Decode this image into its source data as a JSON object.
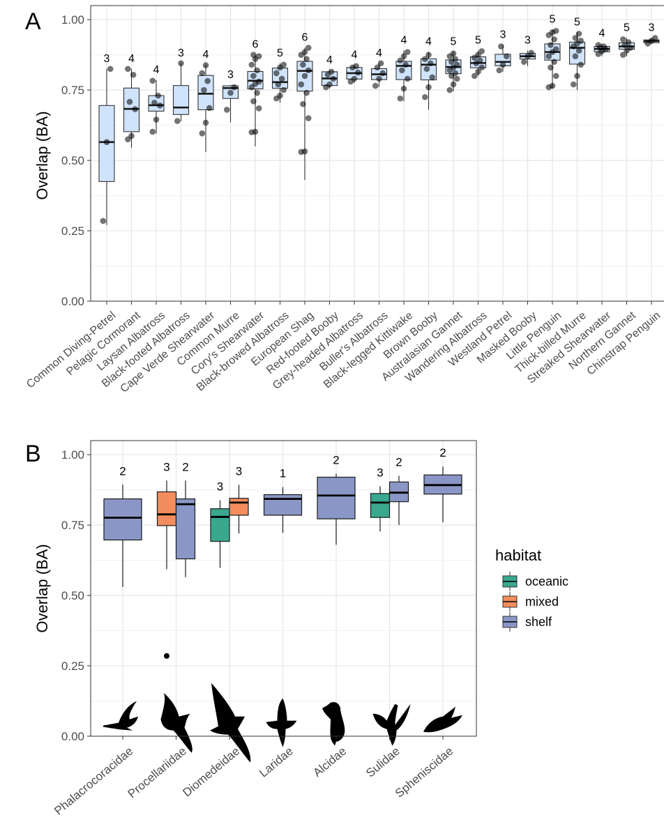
{
  "panel_a": {
    "letter": "A",
    "ylabel": "Overlap (BA)",
    "colors": {
      "box_fill": "#cfe3fb",
      "grid": "#ebebeb",
      "border": "#4d4d4d"
    }
  },
  "panel_b": {
    "letter": "B",
    "ylabel": "Overlap (BA)",
    "legend": {
      "title": "habitat",
      "items": [
        {
          "label": "oceanic",
          "color": "#3aa78f"
        },
        {
          "label": "mixed",
          "color": "#f38d5d"
        },
        {
          "label": "shelf",
          "color": "#8a97c6"
        }
      ]
    }
  },
  "chart_data": [
    {
      "type": "box",
      "ylabel": "Overlap (BA)",
      "ylim": [
        0,
        1.05
      ],
      "yticks": [
        "0.00",
        "0.25",
        "0.50",
        "0.75",
        "1.00"
      ],
      "grid": true,
      "categories": [
        {
          "name": "Common Diving-Petrel",
          "n": "3",
          "whisker_low": 0.27,
          "q1": 0.425,
          "median": 0.565,
          "q3": 0.695,
          "whisker_high": 0.825,
          "points": [
            0.285,
            0.565,
            0.825
          ]
        },
        {
          "name": "Pelagic Cormorant",
          "n": "4",
          "whisker_low": 0.545,
          "q1": 0.602,
          "median": 0.683,
          "q3": 0.757,
          "whisker_high": 0.825,
          "points": [
            0.575,
            0.587,
            0.682,
            0.708,
            0.804,
            0.825
          ]
        },
        {
          "name": "Laysan Albatross",
          "n": "4",
          "whisker_low": 0.595,
          "q1": 0.675,
          "median": 0.696,
          "q3": 0.73,
          "whisker_high": 0.785,
          "points": [
            0.602,
            0.645,
            0.695,
            0.705,
            0.73,
            0.783
          ]
        },
        {
          "name": "Black-footed Albatross",
          "n": "3",
          "whisker_low": 0.64,
          "q1": 0.663,
          "median": 0.688,
          "q3": 0.766,
          "whisker_high": 0.845,
          "points": [
            0.64,
            0.845
          ]
        },
        {
          "name": "Cape Verde Shearwater",
          "n": "4",
          "whisker_low": 0.53,
          "q1": 0.68,
          "median": 0.737,
          "q3": 0.802,
          "whisker_high": 0.84,
          "points": [
            0.596,
            0.634,
            0.686,
            0.75,
            0.782,
            0.81,
            0.838
          ]
        },
        {
          "name": "Common Murre",
          "n": "3",
          "whisker_low": 0.635,
          "q1": 0.72,
          "median": 0.757,
          "q3": 0.765,
          "whisker_high": 0.768,
          "points": [
            0.68,
            0.74,
            0.76
          ]
        },
        {
          "name": "Cory's Shearwater",
          "n": "6",
          "whisker_low": 0.55,
          "q1": 0.754,
          "median": 0.783,
          "q3": 0.816,
          "whisker_high": 0.875,
          "points": [
            0.6,
            0.602,
            0.685,
            0.71,
            0.74,
            0.76,
            0.772,
            0.78,
            0.8,
            0.82,
            0.84,
            0.86,
            0.87,
            0.875
          ]
        },
        {
          "name": "Black-browed Albatross",
          "n": "5",
          "whisker_low": 0.705,
          "q1": 0.756,
          "median": 0.778,
          "q3": 0.828,
          "whisker_high": 0.845,
          "points": [
            0.72,
            0.73,
            0.75,
            0.77,
            0.79,
            0.81,
            0.83,
            0.84
          ]
        },
        {
          "name": "European Shag",
          "n": "6",
          "whisker_low": 0.43,
          "q1": 0.746,
          "median": 0.818,
          "q3": 0.852,
          "whisker_high": 0.9,
          "points": [
            0.53,
            0.532,
            0.65,
            0.7,
            0.74,
            0.77,
            0.8,
            0.82,
            0.84,
            0.86,
            0.875,
            0.885,
            0.9
          ]
        },
        {
          "name": "Red-footed Booby",
          "n": "4",
          "whisker_low": 0.755,
          "q1": 0.766,
          "median": 0.791,
          "q3": 0.815,
          "whisker_high": 0.82,
          "points": [
            0.76,
            0.77,
            0.79,
            0.805,
            0.815
          ]
        },
        {
          "name": "Grey-headed Albatross",
          "n": "4",
          "whisker_low": 0.775,
          "q1": 0.789,
          "median": 0.81,
          "q3": 0.83,
          "whisker_high": 0.838,
          "points": [
            0.78,
            0.79,
            0.812,
            0.83,
            0.835
          ]
        },
        {
          "name": "Buller's Albatross",
          "n": "4",
          "whisker_low": 0.762,
          "q1": 0.787,
          "median": 0.806,
          "q3": 0.826,
          "whisker_high": 0.845,
          "points": [
            0.765,
            0.79,
            0.81,
            0.83,
            0.845
          ]
        },
        {
          "name": "Black-legged Kittiwake",
          "n": "4",
          "whisker_low": 0.71,
          "q1": 0.787,
          "median": 0.836,
          "q3": 0.852,
          "whisker_high": 0.89,
          "points": [
            0.72,
            0.755,
            0.79,
            0.82,
            0.84,
            0.855,
            0.87,
            0.885
          ]
        },
        {
          "name": "Brown Booby",
          "n": "4",
          "whisker_low": 0.68,
          "q1": 0.786,
          "median": 0.84,
          "q3": 0.861,
          "whisker_high": 0.885,
          "points": [
            0.725,
            0.76,
            0.795,
            0.825,
            0.845,
            0.86,
            0.875
          ]
        },
        {
          "name": "Australasian Gannet",
          "n": "5",
          "whisker_low": 0.745,
          "q1": 0.808,
          "median": 0.832,
          "q3": 0.857,
          "whisker_high": 0.885,
          "points": [
            0.75,
            0.77,
            0.79,
            0.8,
            0.81,
            0.82,
            0.83,
            0.84,
            0.85,
            0.86,
            0.87,
            0.88
          ]
        },
        {
          "name": "Wandering Albatross",
          "n": "5",
          "whisker_low": 0.8,
          "q1": 0.829,
          "median": 0.846,
          "q3": 0.868,
          "whisker_high": 0.89,
          "points": [
            0.8,
            0.815,
            0.83,
            0.845,
            0.855,
            0.865,
            0.875,
            0.888
          ]
        },
        {
          "name": "Westland Petrel",
          "n": "3",
          "whisker_low": 0.815,
          "q1": 0.836,
          "median": 0.85,
          "q3": 0.877,
          "whisker_high": 0.91,
          "points": [
            0.82,
            0.84,
            0.87,
            0.905
          ]
        },
        {
          "name": "Masked Booby",
          "n": "3",
          "whisker_low": 0.835,
          "q1": 0.86,
          "median": 0.87,
          "q3": 0.88,
          "whisker_high": 0.89,
          "points": [
            0.85,
            0.87,
            0.882
          ]
        },
        {
          "name": "Little Penguin",
          "n": "5",
          "whisker_low": 0.755,
          "q1": 0.856,
          "median": 0.885,
          "q3": 0.914,
          "whisker_high": 0.965,
          "points": [
            0.76,
            0.765,
            0.8,
            0.83,
            0.85,
            0.87,
            0.885,
            0.895,
            0.91,
            0.93,
            0.945,
            0.955,
            0.96
          ]
        },
        {
          "name": "Thick-billed Murre",
          "n": "5",
          "whisker_low": 0.75,
          "q1": 0.842,
          "median": 0.9,
          "q3": 0.92,
          "whisker_high": 0.955,
          "points": [
            0.77,
            0.8,
            0.84,
            0.87,
            0.89,
            0.905,
            0.915,
            0.925,
            0.935,
            0.95
          ]
        },
        {
          "name": "Streaked Shearwater",
          "n": "4",
          "whisker_low": 0.87,
          "q1": 0.886,
          "median": 0.896,
          "q3": 0.905,
          "whisker_high": 0.915,
          "points": [
            0.878,
            0.888,
            0.895,
            0.9,
            0.905,
            0.91
          ]
        },
        {
          "name": "Northern Gannet",
          "n": "5",
          "whisker_low": 0.87,
          "q1": 0.895,
          "median": 0.905,
          "q3": 0.918,
          "whisker_high": 0.935,
          "points": [
            0.875,
            0.89,
            0.9,
            0.91,
            0.92,
            0.93
          ]
        },
        {
          "name": "Chinstrap Penguin",
          "n": "3",
          "whisker_low": 0.912,
          "q1": 0.918,
          "median": 0.924,
          "q3": 0.928,
          "whisker_high": 0.935,
          "points": [
            0.915,
            0.925,
            0.935
          ]
        }
      ]
    },
    {
      "type": "box",
      "ylabel": "Overlap (BA)",
      "ylim": [
        0,
        1.05
      ],
      "yticks": [
        "0.00",
        "0.25",
        "0.50",
        "0.75",
        "1.00"
      ],
      "grid": true,
      "legend_position": "right",
      "categories": [
        "Phalacrocoracidae",
        "Procellariidae",
        "Diomedeidae",
        "Laridae",
        "Alcidae",
        "Sulidae",
        "Spheniscidae"
      ],
      "boxes": [
        {
          "family": "Phalacrocoracidae",
          "habitat": "shelf",
          "n": "2",
          "whisker_low": 0.53,
          "q1": 0.697,
          "median": 0.776,
          "q3": 0.843,
          "whisker_high": 0.893,
          "outliers": []
        },
        {
          "family": "Procellariidae",
          "habitat": "mixed",
          "n": "3",
          "whisker_low": 0.593,
          "q1": 0.748,
          "median": 0.788,
          "q3": 0.868,
          "whisker_high": 0.908,
          "outliers": [
            0.285
          ]
        },
        {
          "family": "Procellariidae",
          "habitat": "shelf",
          "n": "2",
          "whisker_low": 0.565,
          "q1": 0.63,
          "median": 0.824,
          "q3": 0.843,
          "whisker_high": 0.908,
          "outliers": []
        },
        {
          "family": "Diomedeidae",
          "habitat": "oceanic",
          "n": "3",
          "whisker_low": 0.598,
          "q1": 0.692,
          "median": 0.779,
          "q3": 0.808,
          "whisker_high": 0.838,
          "outliers": []
        },
        {
          "family": "Diomedeidae",
          "habitat": "mixed",
          "n": "3",
          "whisker_low": 0.72,
          "q1": 0.785,
          "median": 0.83,
          "q3": 0.845,
          "whisker_high": 0.893,
          "outliers": []
        },
        {
          "family": "Laridae",
          "habitat": "shelf",
          "n": "1",
          "whisker_low": 0.722,
          "q1": 0.785,
          "median": 0.843,
          "q3": 0.858,
          "whisker_high": 0.885,
          "outliers": []
        },
        {
          "family": "Alcidae",
          "habitat": "shelf",
          "n": "2",
          "whisker_low": 0.68,
          "q1": 0.772,
          "median": 0.855,
          "q3": 0.92,
          "whisker_high": 0.932,
          "outliers": []
        },
        {
          "family": "Sulidae",
          "habitat": "oceanic",
          "n": "3",
          "whisker_low": 0.727,
          "q1": 0.777,
          "median": 0.83,
          "q3": 0.862,
          "whisker_high": 0.888,
          "outliers": []
        },
        {
          "family": "Sulidae",
          "habitat": "shelf",
          "n": "2",
          "whisker_low": 0.75,
          "q1": 0.833,
          "median": 0.865,
          "q3": 0.903,
          "whisker_high": 0.925,
          "outliers": []
        },
        {
          "family": "Spheniscidae",
          "habitat": "shelf",
          "n": "2",
          "whisker_low": 0.76,
          "q1": 0.86,
          "median": 0.892,
          "q3": 0.928,
          "whisker_high": 0.958,
          "outliers": []
        }
      ],
      "silhouettes": [
        "cormorant-silhouette-icon",
        "petrel-silhouette-icon",
        "albatross-silhouette-icon",
        "gull-silhouette-icon",
        "auk-silhouette-icon",
        "gannet-silhouette-icon",
        "penguin-silhouette-icon"
      ]
    }
  ]
}
